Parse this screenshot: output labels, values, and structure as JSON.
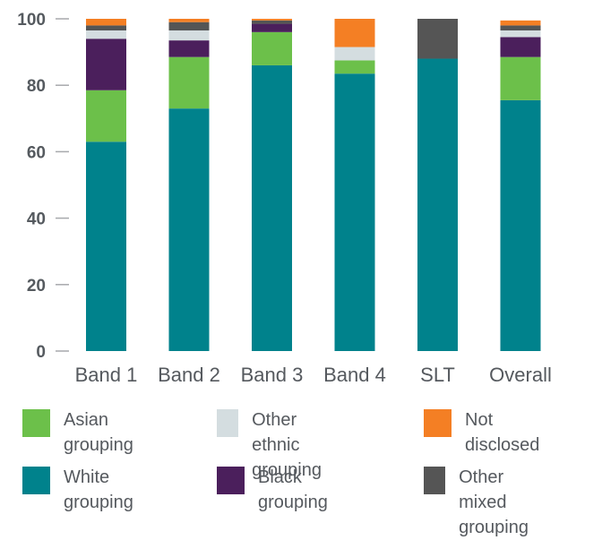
{
  "chart_data": {
    "type": "bar",
    "stacked": true,
    "categories": [
      "Band 1",
      "Band 2",
      "Band 3",
      "Band 4",
      "SLT",
      "Overall"
    ],
    "ylim": [
      0,
      100
    ],
    "yticks": [
      0,
      20,
      40,
      60,
      80,
      100
    ],
    "grid": false,
    "legend_position": "bottom",
    "series": [
      {
        "name": "White grouping",
        "color": "#00828c",
        "values": [
          63,
          73,
          86,
          83.5,
          88,
          75.5
        ]
      },
      {
        "name": "Asian grouping",
        "color": "#6cc04a",
        "values": [
          15.5,
          15.5,
          10,
          4,
          0,
          13
        ]
      },
      {
        "name": "Black grouping",
        "color": "#4b1f5c",
        "values": [
          15.5,
          5,
          2.5,
          0,
          0,
          6
        ]
      },
      {
        "name": "Other ethnic grouping",
        "color": "#d4dde0",
        "values": [
          2.5,
          3,
          0,
          4,
          0,
          2
        ]
      },
      {
        "name": "Other mixed grouping",
        "color": "#555555",
        "values": [
          1.5,
          2.5,
          1,
          0,
          12,
          1.5
        ]
      },
      {
        "name": "Not disclosed",
        "color": "#f47f24",
        "values": [
          2,
          1,
          0.5,
          8.5,
          0,
          1.5
        ]
      }
    ]
  },
  "legend": [
    {
      "label": "Asian\ngrouping",
      "color": "#6cc04a"
    },
    {
      "label": "Other ethnic\ngrouping",
      "color": "#d4dde0"
    },
    {
      "label": "Not\ndisclosed",
      "color": "#f47f24"
    },
    {
      "label": "White\ngrouping",
      "color": "#00828c"
    },
    {
      "label": "Black\ngrouping",
      "color": "#4b1f5c"
    },
    {
      "label": "Other mixed\ngrouping",
      "color": "#555555"
    }
  ]
}
